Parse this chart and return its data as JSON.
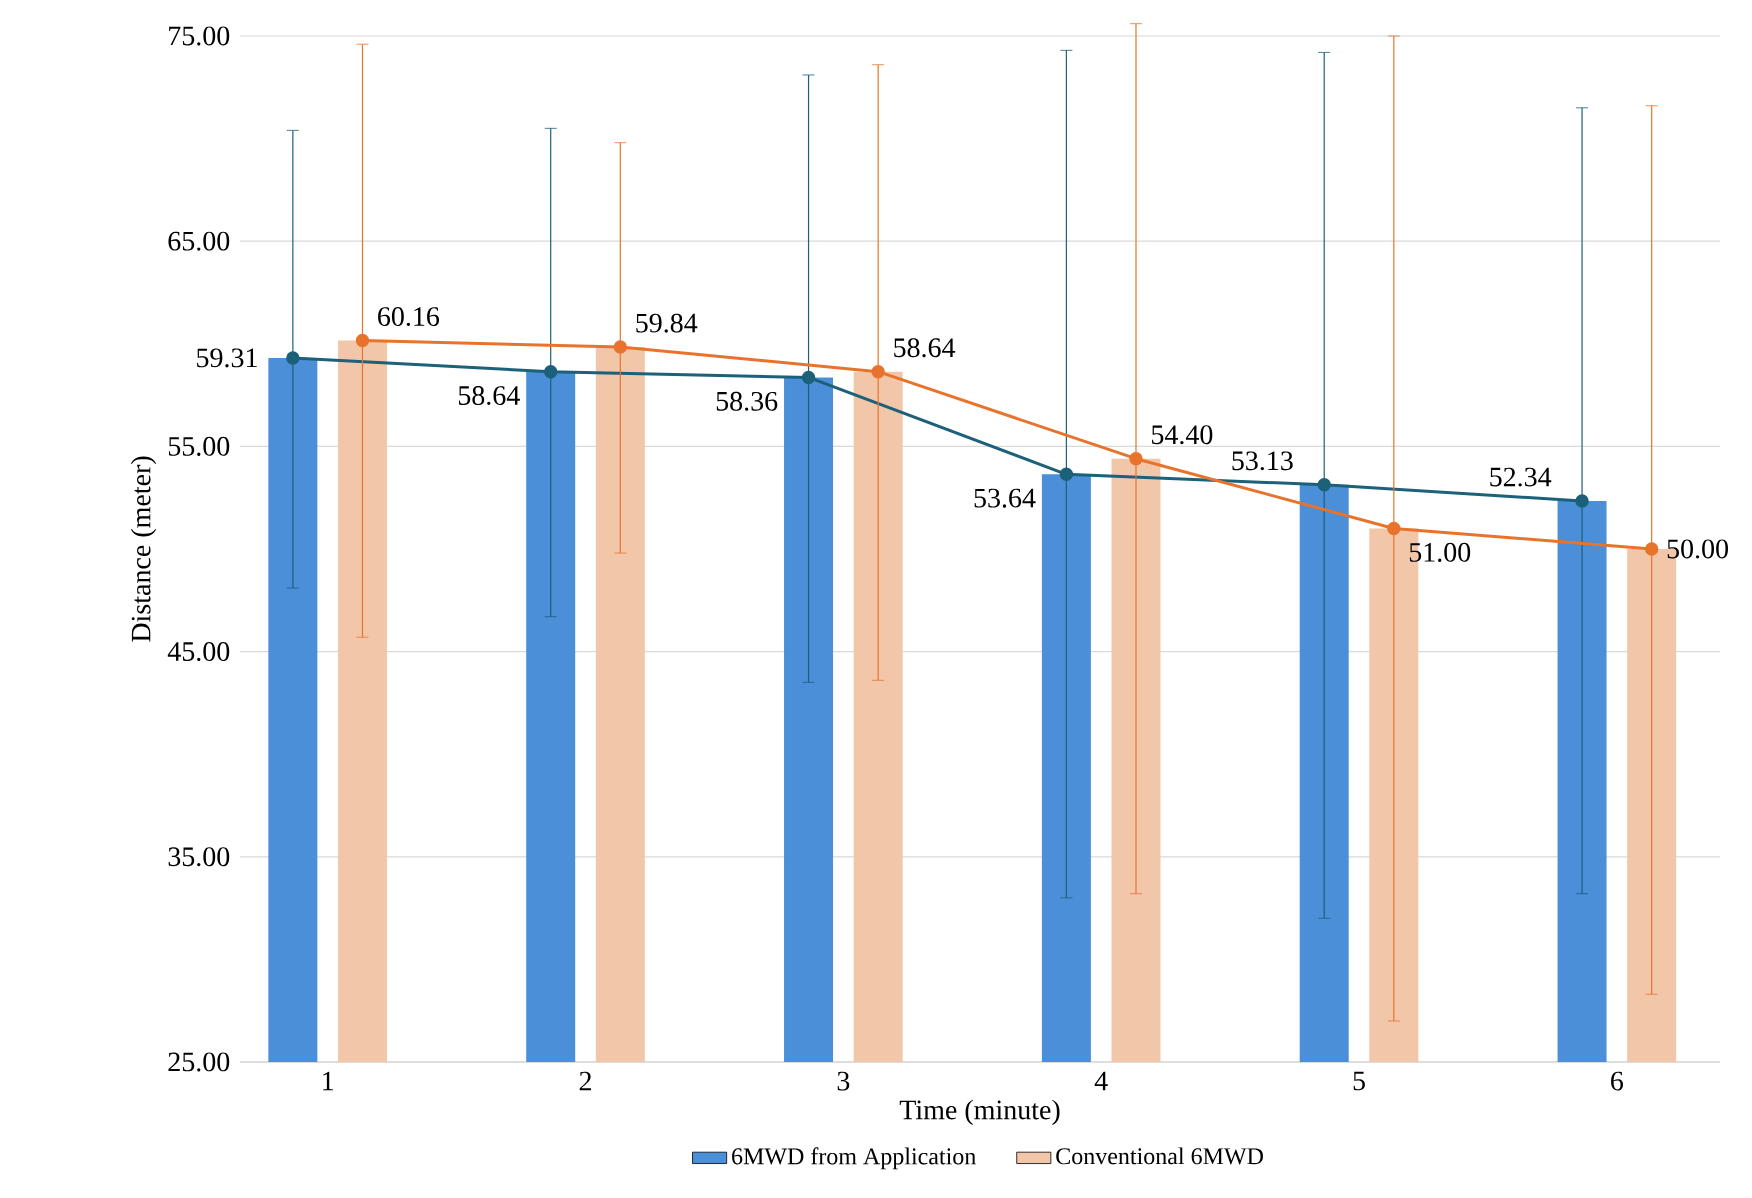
{
  "chart_data": {
    "type": "bar",
    "xlabel": "Time (minute)",
    "ylabel": "Distance (meter)",
    "categories": [
      "1",
      "2",
      "3",
      "4",
      "5",
      "6"
    ],
    "ylim": [
      25,
      75
    ],
    "yticks": [
      {
        "value": 25,
        "label": "25.00"
      },
      {
        "value": 35,
        "label": "35.00"
      },
      {
        "value": 45,
        "label": "45.00"
      },
      {
        "value": 55,
        "label": "55.00"
      },
      {
        "value": 65,
        "label": "65.00"
      },
      {
        "value": 75,
        "label": "75.00"
      }
    ],
    "grid": "y",
    "legend": "bottom",
    "series": [
      {
        "name": "6MWD from Application",
        "color": "#4a8fd8",
        "values": [
          59.31,
          58.64,
          58.36,
          53.64,
          53.13,
          52.34
        ]
      },
      {
        "name": "Conventional 6MWD",
        "color": "#f2c6a9",
        "values": [
          60.16,
          59.84,
          58.64,
          54.4,
          51.0,
          50.0
        ]
      },
      {
        "type": "line",
        "color": "#1c6079",
        "marker": "circle",
        "values": [
          59.31,
          58.64,
          58.36,
          53.64,
          53.13,
          52.34
        ],
        "value_labels": [
          "59.31",
          "58.64",
          "58.36",
          "53.64",
          "53.13",
          "52.34"
        ],
        "errors": [
          [
            48.1,
            70.4
          ],
          [
            46.7,
            70.5
          ],
          [
            43.5,
            73.1
          ],
          [
            33.0,
            74.3
          ],
          [
            32.0,
            74.2
          ],
          [
            33.2,
            71.5
          ]
        ]
      },
      {
        "type": "line",
        "color": "#e8732c",
        "marker": "circle",
        "values": [
          60.16,
          59.84,
          58.64,
          54.4,
          51.0,
          50.0
        ],
        "value_labels": [
          "60.16",
          "59.84",
          "58.64",
          "54.40",
          "51.00",
          "50.00"
        ],
        "errors": [
          [
            45.7,
            74.6
          ],
          [
            49.8,
            69.8
          ],
          [
            43.6,
            73.6
          ],
          [
            33.2,
            75.6
          ],
          [
            27.0,
            75.0
          ],
          [
            28.3,
            71.6
          ]
        ]
      }
    ]
  }
}
